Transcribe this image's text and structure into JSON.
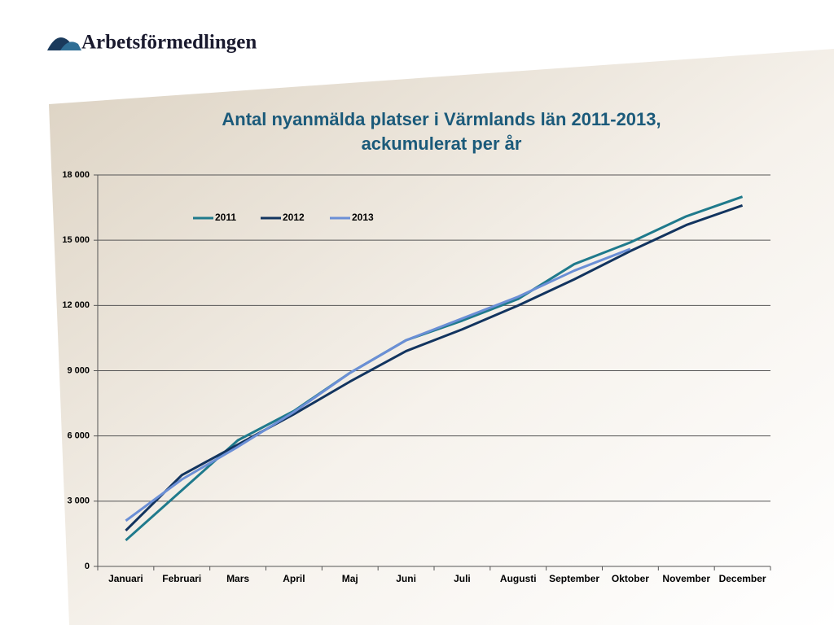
{
  "logo": "Arbetsförmedlingen",
  "chart_data": {
    "type": "line",
    "title": [
      "Antal nyanmälda platser i Värmlands län 2011-2013,",
      "ackumulerat per år"
    ],
    "categories": [
      "Januari",
      "Februari",
      "Mars",
      "April",
      "Maj",
      "Juni",
      "Juli",
      "Augusti",
      "September",
      "Oktober",
      "November",
      "December"
    ],
    "series": [
      {
        "name": "2011",
        "color": "#1f7a8c",
        "values": [
          1200,
          3500,
          5800,
          7150,
          8900,
          10400,
          11300,
          12300,
          13900,
          14900,
          16100,
          17000
        ]
      },
      {
        "name": "2012",
        "color": "#12345f",
        "values": [
          1650,
          4200,
          5600,
          7000,
          8500,
          9900,
          10900,
          12000,
          13200,
          14500,
          15700,
          16600
        ]
      },
      {
        "name": "2013",
        "color": "#6b8fd6",
        "values": [
          2100,
          4000,
          5500,
          7100,
          8900,
          10400,
          11400,
          12400,
          13600,
          14600,
          null,
          null
        ]
      }
    ],
    "ylim": [
      0,
      18000
    ],
    "yticks": [
      0,
      {
        "value": 3000,
        "label": "3 000"
      },
      {
        "value": 6000,
        "label": "6 000"
      },
      {
        "value": 9000,
        "label": "9 000"
      },
      {
        "value": 12000,
        "label": "12 000"
      },
      {
        "value": 15000,
        "label": "15 000"
      },
      {
        "value": 18000,
        "label": "18 000"
      }
    ],
    "grid": true,
    "legend": "top-left"
  }
}
